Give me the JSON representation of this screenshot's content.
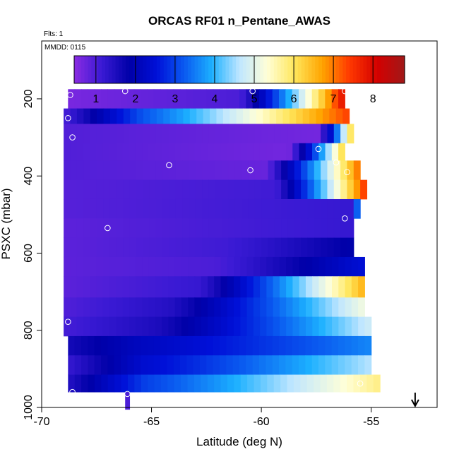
{
  "chart_data": {
    "type": "heatmap",
    "title": "ORCAS RF01 n_Pentane_AWAS",
    "flights_label": "Flts: 1",
    "date_label": "MMDD: 0115",
    "xlabel": "Latitude (deg N)",
    "ylabel": "PSXC (mbar)",
    "xlim": [
      -70,
      -52
    ],
    "ylim": [
      1000,
      50
    ],
    "x_ticks": [
      -70,
      -65,
      -60,
      -55
    ],
    "x_tick_labels": [
      "-70",
      "-65",
      "-60",
      "-55"
    ],
    "y_ticks": [
      200,
      400,
      600,
      800,
      1000
    ],
    "y_tick_labels": [
      "200",
      "400",
      "600",
      "800",
      "1000"
    ],
    "colorbar": {
      "range": [
        0.45,
        8.8
      ],
      "ticks": [
        1,
        2,
        3,
        4,
        5,
        6,
        7,
        8
      ],
      "tick_labels": [
        "1",
        "2",
        "3",
        "4",
        "5",
        "6",
        "7",
        "8"
      ],
      "colors": [
        "#8a2be2",
        "#3a1ad4",
        "#0000a8",
        "#0010d8",
        "#0a5af0",
        "#1cb0ff",
        "#bfe6ff",
        "#ffffd8",
        "#ffe65c",
        "#ffa500",
        "#ff3800",
        "#d40000",
        "#a01818"
      ]
    },
    "bands": [
      {
        "p1": 175,
        "p2": 225,
        "lat0": -68.8,
        "lat1": -56.2,
        "start": 0.6,
        "mid": 1.0,
        "end": 8.0,
        "holdFrac": 0.62
      },
      {
        "p1": 225,
        "p2": 265,
        "lat0": -69.0,
        "lat1": -56.0,
        "start": 1.0,
        "mid": 3.2,
        "end": 7.4,
        "holdFrac": 0.28
      },
      {
        "p1": 265,
        "p2": 315,
        "lat0": -69.0,
        "lat1": -55.8,
        "start": 0.95,
        "mid": 0.65,
        "end": 6.6,
        "holdFrac": 0.88
      },
      {
        "p1": 315,
        "p2": 360,
        "lat0": -69.0,
        "lat1": -56.2,
        "start": 0.95,
        "mid": 0.65,
        "end": 6.4,
        "holdFrac": 0.8
      },
      {
        "p1": 360,
        "p2": 410,
        "lat0": -69.0,
        "lat1": -55.5,
        "start": 0.95,
        "mid": 0.75,
        "end": 7.2,
        "holdFrac": 0.68
      },
      {
        "p1": 410,
        "p2": 460,
        "lat0": -69.0,
        "lat1": -55.2,
        "start": 0.9,
        "mid": 1.1,
        "end": 7.6,
        "holdFrac": 0.7
      },
      {
        "p1": 460,
        "p2": 510,
        "lat0": -69.0,
        "lat1": -55.5,
        "start": 0.9,
        "mid": 1.2,
        "end": 6.5,
        "holdFrac": 0.98
      },
      {
        "p1": 510,
        "p2": 560,
        "lat0": -69.0,
        "lat1": -55.8,
        "start": 0.85,
        "mid": 1.2,
        "end": 1.2,
        "holdFrac": 1.0
      },
      {
        "p1": 560,
        "p2": 610,
        "lat0": -69.0,
        "lat1": -55.8,
        "start": 0.85,
        "mid": 1.1,
        "end": 1.9,
        "holdFrac": 0.55
      },
      {
        "p1": 610,
        "p2": 660,
        "lat0": -69.0,
        "lat1": -55.3,
        "start": 0.85,
        "mid": 1.0,
        "end": 2.5,
        "holdFrac": 0.5
      },
      {
        "p1": 660,
        "p2": 715,
        "lat0": -69.0,
        "lat1": -55.3,
        "start": 0.85,
        "mid": 1.2,
        "end": 6.6,
        "holdFrac": 0.45
      },
      {
        "p1": 715,
        "p2": 765,
        "lat0": -69.0,
        "lat1": -55.3,
        "start": 0.95,
        "mid": 1.4,
        "end": 5.2,
        "holdFrac": 0.35
      },
      {
        "p1": 765,
        "p2": 815,
        "lat0": -69.0,
        "lat1": -55.0,
        "start": 1.05,
        "mid": 1.5,
        "end": 4.8,
        "holdFrac": 0.3
      },
      {
        "p1": 815,
        "p2": 865,
        "lat0": -68.8,
        "lat1": -55.0,
        "start": 1.6,
        "mid": 2.2,
        "end": 3.6,
        "holdFrac": 0.25
      },
      {
        "p1": 865,
        "p2": 915,
        "lat0": -68.8,
        "lat1": -55.0,
        "start": 1.2,
        "mid": 2.4,
        "end": 4.6,
        "holdFrac": 0.25
      },
      {
        "p1": 915,
        "p2": 960,
        "lat0": -68.8,
        "lat1": -54.6,
        "start": 1.4,
        "mid": 3.0,
        "end": 5.8,
        "holdFrac": 0.25
      },
      {
        "p1": 960,
        "p2": 1005,
        "lat0": -66.2,
        "lat1": -66.0,
        "start": 1.0,
        "mid": 1.0,
        "end": 1.0,
        "holdFrac": 1.0
      }
    ],
    "sample_points": [
      {
        "lat": -68.7,
        "p": 190
      },
      {
        "lat": -66.2,
        "p": 180
      },
      {
        "lat": -60.4,
        "p": 180
      },
      {
        "lat": -56.2,
        "p": 180
      },
      {
        "lat": -68.8,
        "p": 250
      },
      {
        "lat": -68.6,
        "p": 300
      },
      {
        "lat": -57.4,
        "p": 330
      },
      {
        "lat": -56.6,
        "p": 365
      },
      {
        "lat": -64.2,
        "p": 372
      },
      {
        "lat": -60.5,
        "p": 385
      },
      {
        "lat": -56.1,
        "p": 390
      },
      {
        "lat": -56.2,
        "p": 510
      },
      {
        "lat": -67.0,
        "p": 535
      },
      {
        "lat": -68.8,
        "p": 778
      },
      {
        "lat": -55.5,
        "p": 938
      },
      {
        "lat": -68.6,
        "p": 960
      },
      {
        "lat": -66.1,
        "p": 965
      }
    ],
    "arrow_lat": -53.0
  }
}
